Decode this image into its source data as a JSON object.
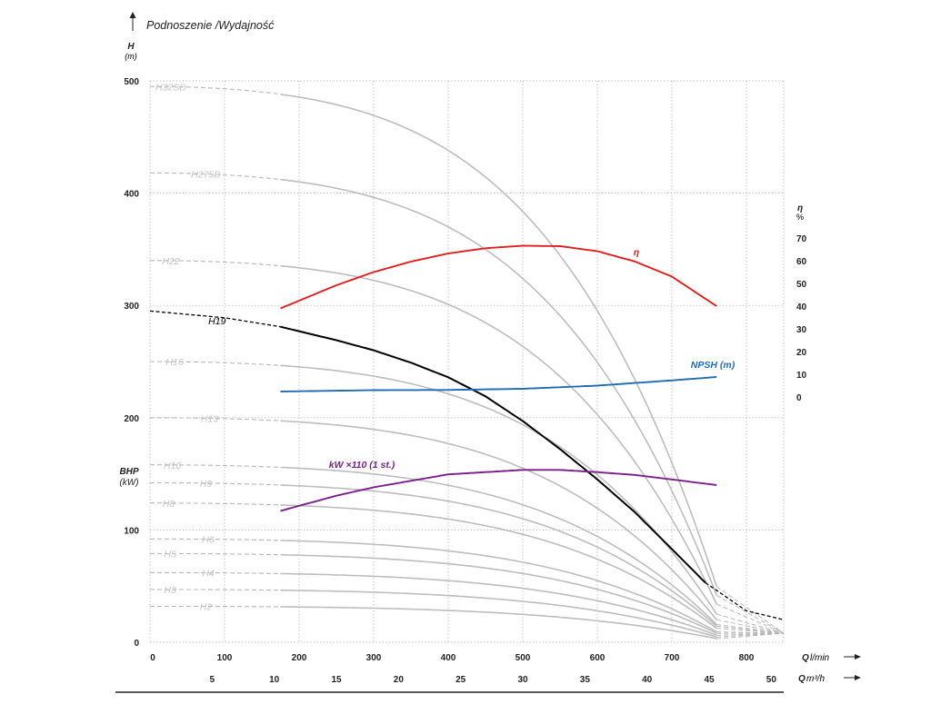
{
  "chart_data": {
    "type": "line",
    "title": "Podnoszenie /Wydajność",
    "y_left": {
      "label": "H",
      "unit": "(m)",
      "ticks": [
        0,
        100,
        200,
        300,
        400,
        500
      ],
      "range": [
        0,
        500
      ]
    },
    "y_right": {
      "label": "η",
      "unit": "%",
      "ticks": [
        0,
        10,
        20,
        30,
        40,
        50,
        60,
        70
      ],
      "range": [
        0,
        70
      ]
    },
    "bhp": {
      "label": "BHP",
      "unit": "(kW)"
    },
    "x_axis": {
      "label": "Q",
      "unit": "l/min",
      "ticks": [
        0,
        100,
        200,
        300,
        400,
        500,
        600,
        700,
        800
      ],
      "range": [
        0,
        850
      ]
    },
    "x_axis2": {
      "label": "Q",
      "unit": "m³/h",
      "ticks": [
        5,
        10,
        15,
        20,
        25,
        30,
        35,
        40,
        45,
        50
      ]
    },
    "grid": true,
    "operating_range_lmin": [
      175,
      760
    ],
    "grey_curves": [
      {
        "name": "H32SD",
        "h0": 495
      },
      {
        "name": "H275D",
        "h0": 418
      },
      {
        "name": "H22",
        "h0": 340
      },
      {
        "name": "H16",
        "h0": 250
      },
      {
        "name": "H13",
        "h0": 200
      },
      {
        "name": "H10",
        "h0": 158
      },
      {
        "name": "H9",
        "h0": 142
      },
      {
        "name": "H8",
        "h0": 124
      },
      {
        "name": "H6",
        "h0": 92
      },
      {
        "name": "H5",
        "h0": 79
      },
      {
        "name": "H4",
        "h0": 62
      },
      {
        "name": "H3",
        "h0": 47
      },
      {
        "name": "H2",
        "h0": 32
      }
    ],
    "series": [
      {
        "name": "H19",
        "color": "#000000",
        "x": [
          0,
          100,
          175,
          250,
          300,
          350,
          400,
          450,
          500,
          550,
          600,
          650,
          700,
          745,
          800,
          850
        ],
        "y": [
          295,
          289,
          281,
          269,
          260,
          249,
          236,
          219,
          197,
          172,
          145,
          116,
          83,
          53,
          28,
          20
        ]
      },
      {
        "name": "η",
        "color": "#e02020",
        "axis": "right",
        "x": [
          175,
          250,
          300,
          350,
          400,
          450,
          500,
          550,
          600,
          650,
          700,
          760
        ],
        "y": [
          39,
          49.2,
          55,
          59.6,
          63.2,
          65.5,
          66.6,
          66.4,
          64.2,
          59.7,
          53,
          40
        ]
      },
      {
        "name": "NPSH (m)",
        "color": "#1f6bb5",
        "axis": "right",
        "x": [
          175,
          300,
          400,
          500,
          600,
          700,
          760
        ],
        "y": [
          2.4,
          3.0,
          3.1,
          3.6,
          5.0,
          7.3,
          8.8
        ]
      },
      {
        "name": "kW ×110 (1 st.)",
        "color": "#7b1e8e",
        "axis": "left",
        "x": [
          175,
          250,
          300,
          400,
          500,
          550,
          600,
          650,
          700,
          760
        ],
        "y": [
          117,
          130.5,
          138,
          149.5,
          153.5,
          153.5,
          151.5,
          149,
          145,
          140
        ]
      }
    ]
  }
}
